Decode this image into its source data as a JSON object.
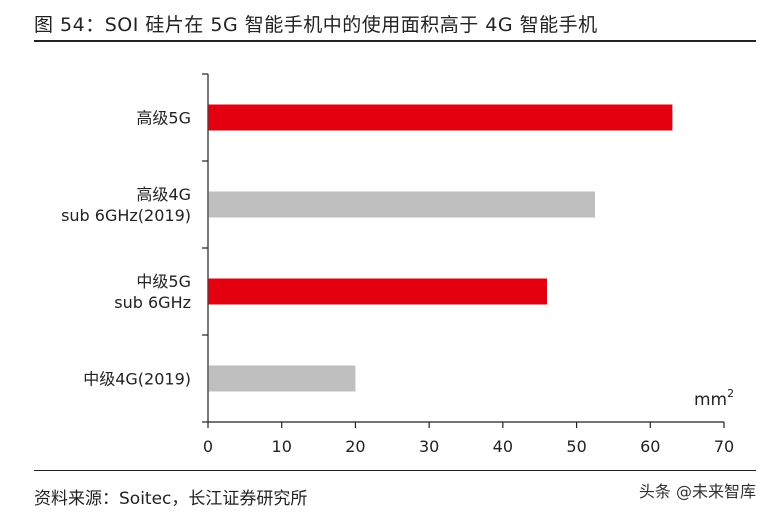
{
  "figure": {
    "title": "图 54：SOI 硅片在 5G 智能手机中的使用面积高于 4G 智能手机",
    "source": "资料来源：Soitec，长江证券研究所",
    "unit_base": "mm",
    "unit_exp": "2",
    "watermark_left": "头条 @未来智库"
  },
  "chart_data": {
    "type": "bar",
    "orientation": "horizontal",
    "categories": [
      [
        "高级5G"
      ],
      [
        "高级4G",
        "sub 6GHz(2019)"
      ],
      [
        "中级5G",
        "sub 6GHz"
      ],
      [
        "中级4G(2019)"
      ]
    ],
    "values": [
      63,
      52.5,
      46,
      20
    ],
    "colors": [
      "#e3000f",
      "#bfbfbf",
      "#e3000f",
      "#bfbfbf"
    ],
    "xticks": [
      "0",
      "10",
      "20",
      "30",
      "40",
      "50",
      "60",
      "70"
    ],
    "xlim": [
      0,
      70
    ],
    "unit": "mm2",
    "grid": false,
    "legend": "none"
  }
}
